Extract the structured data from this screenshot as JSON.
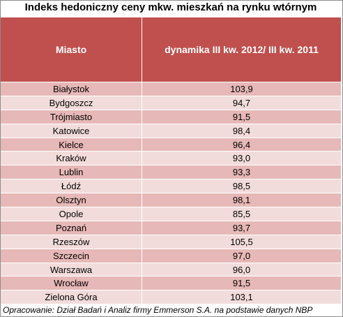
{
  "title": "Indeks hedoniczny ceny mkw. mieszkań na rynku wtórnym",
  "table": {
    "header": [
      "Miasto",
      "dynamika III kw. 2012/ III kw. 2011"
    ],
    "rows": [
      [
        "Białystok",
        "103,9"
      ],
      [
        "Bydgoszcz",
        "94,7"
      ],
      [
        "Trójmiasto",
        "91,5"
      ],
      [
        "Katowice",
        "98,4"
      ],
      [
        "Kielce",
        "96,4"
      ],
      [
        "Kraków",
        "93,0"
      ],
      [
        "Lublin",
        "93,3"
      ],
      [
        "Łódź",
        "98,5"
      ],
      [
        "Olsztyn",
        "98,1"
      ],
      [
        "Opole",
        "85,5"
      ],
      [
        "Poznań",
        "93,7"
      ],
      [
        "Rzeszów",
        "105,5"
      ],
      [
        "Szczecin",
        "97,0"
      ],
      [
        "Warszawa",
        "96,0"
      ],
      [
        "Wrocław",
        "91,5"
      ],
      [
        "Zielona Góra",
        "103,1"
      ]
    ]
  },
  "source": "Opracowanie: Dział Badań i Analiz firmy Emmerson S.A. na podstawie danych NBP"
}
